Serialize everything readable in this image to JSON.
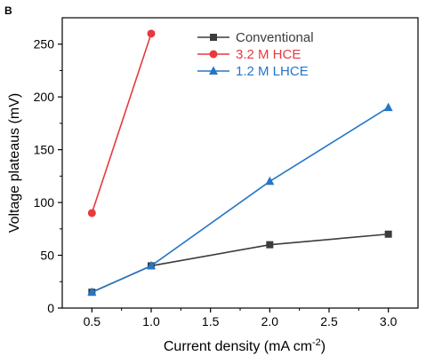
{
  "chart_data": {
    "type": "line",
    "panel_label": "B",
    "xlabel_main": "Current density (mA cm",
    "xlabel_sup": "-2",
    "xlabel_close": ")",
    "ylabel": "Voltage plateaus (mV)",
    "xlim": [
      0.25,
      3.25
    ],
    "ylim": [
      0,
      275
    ],
    "xticks": [
      0.5,
      1.0,
      1.5,
      2.0,
      2.5,
      3.0
    ],
    "xtick_labels": [
      "0.5",
      "1.0",
      "1.5",
      "2.0",
      "2.5",
      "3.0"
    ],
    "yticks": [
      0,
      50,
      100,
      150,
      200,
      250
    ],
    "ytick_labels": [
      "0",
      "50",
      "100",
      "150",
      "200",
      "250"
    ],
    "grid": false,
    "legend_position": "top-right",
    "series": [
      {
        "name": "Conventional",
        "color": "#3c3c3c",
        "marker": "square",
        "x": [
          0.5,
          1.0,
          2.0,
          3.0
        ],
        "y": [
          15,
          40,
          60,
          70
        ]
      },
      {
        "name": "3.2 M HCE",
        "color": "#e8393d",
        "marker": "circle",
        "x": [
          0.5,
          1.0
        ],
        "y": [
          90,
          260
        ]
      },
      {
        "name": "1.2 M LHCE",
        "color": "#2476c6",
        "marker": "triangle",
        "x": [
          0.5,
          1.0,
          2.0,
          3.0
        ],
        "y": [
          15,
          40,
          120,
          190
        ]
      }
    ]
  }
}
